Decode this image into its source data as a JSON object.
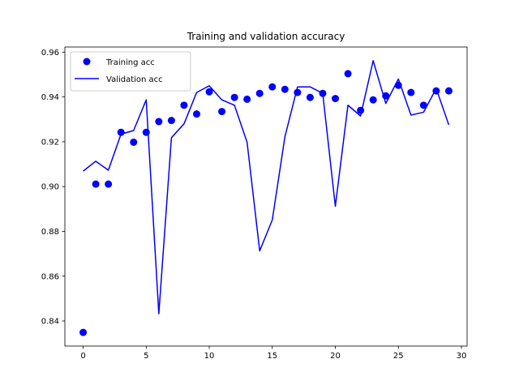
{
  "chart_data": {
    "type": "line",
    "title": "Training and validation accuracy",
    "xlabel": "",
    "ylabel": "",
    "xlim": [
      -1.45,
      30.45
    ],
    "ylim": [
      0.8288,
      0.9623
    ],
    "xticks": [
      0,
      5,
      10,
      15,
      20,
      25,
      30
    ],
    "yticks": [
      0.84,
      0.86,
      0.88,
      0.9,
      0.92,
      0.94,
      0.96
    ],
    "ytick_labels": [
      "0.84",
      "0.86",
      "0.88",
      "0.90",
      "0.92",
      "0.94",
      "0.96"
    ],
    "grid": false,
    "legend_placement": "upper-left",
    "series": [
      {
        "name": "Training acc",
        "style": "markers",
        "color": "#0000ff",
        "x": [
          0,
          1,
          2,
          3,
          4,
          5,
          6,
          7,
          8,
          9,
          10,
          11,
          12,
          13,
          14,
          15,
          16,
          17,
          18,
          19,
          20,
          21,
          22,
          23,
          24,
          25,
          26,
          27,
          28,
          29
        ],
        "values": [
          0.8349,
          0.9011,
          0.9011,
          0.9242,
          0.9198,
          0.9242,
          0.929,
          0.9295,
          0.9363,
          0.9324,
          0.9423,
          0.9335,
          0.9398,
          0.939,
          0.9416,
          0.9445,
          0.9434,
          0.942,
          0.9398,
          0.9416,
          0.9393,
          0.9504,
          0.934,
          0.9387,
          0.9405,
          0.9452,
          0.942,
          0.9363,
          0.9427,
          0.9427
        ]
      },
      {
        "name": "Validation acc",
        "style": "line",
        "color": "#0000ff",
        "x": [
          0,
          1,
          2,
          3,
          4,
          5,
          6,
          7,
          8,
          9,
          10,
          11,
          12,
          13,
          14,
          15,
          16,
          17,
          18,
          19,
          20,
          21,
          22,
          23,
          24,
          25,
          26,
          27,
          28,
          29
        ],
        "values": [
          0.9069,
          0.9113,
          0.9073,
          0.9234,
          0.925,
          0.9387,
          0.8432,
          0.9218,
          0.928,
          0.942,
          0.945,
          0.9387,
          0.9363,
          0.9198,
          0.8713,
          0.8851,
          0.9222,
          0.9445,
          0.9445,
          0.9416,
          0.8912,
          0.9363,
          0.9315,
          0.9562,
          0.9371,
          0.948,
          0.9319,
          0.9332,
          0.9438,
          0.9275
        ]
      }
    ]
  }
}
